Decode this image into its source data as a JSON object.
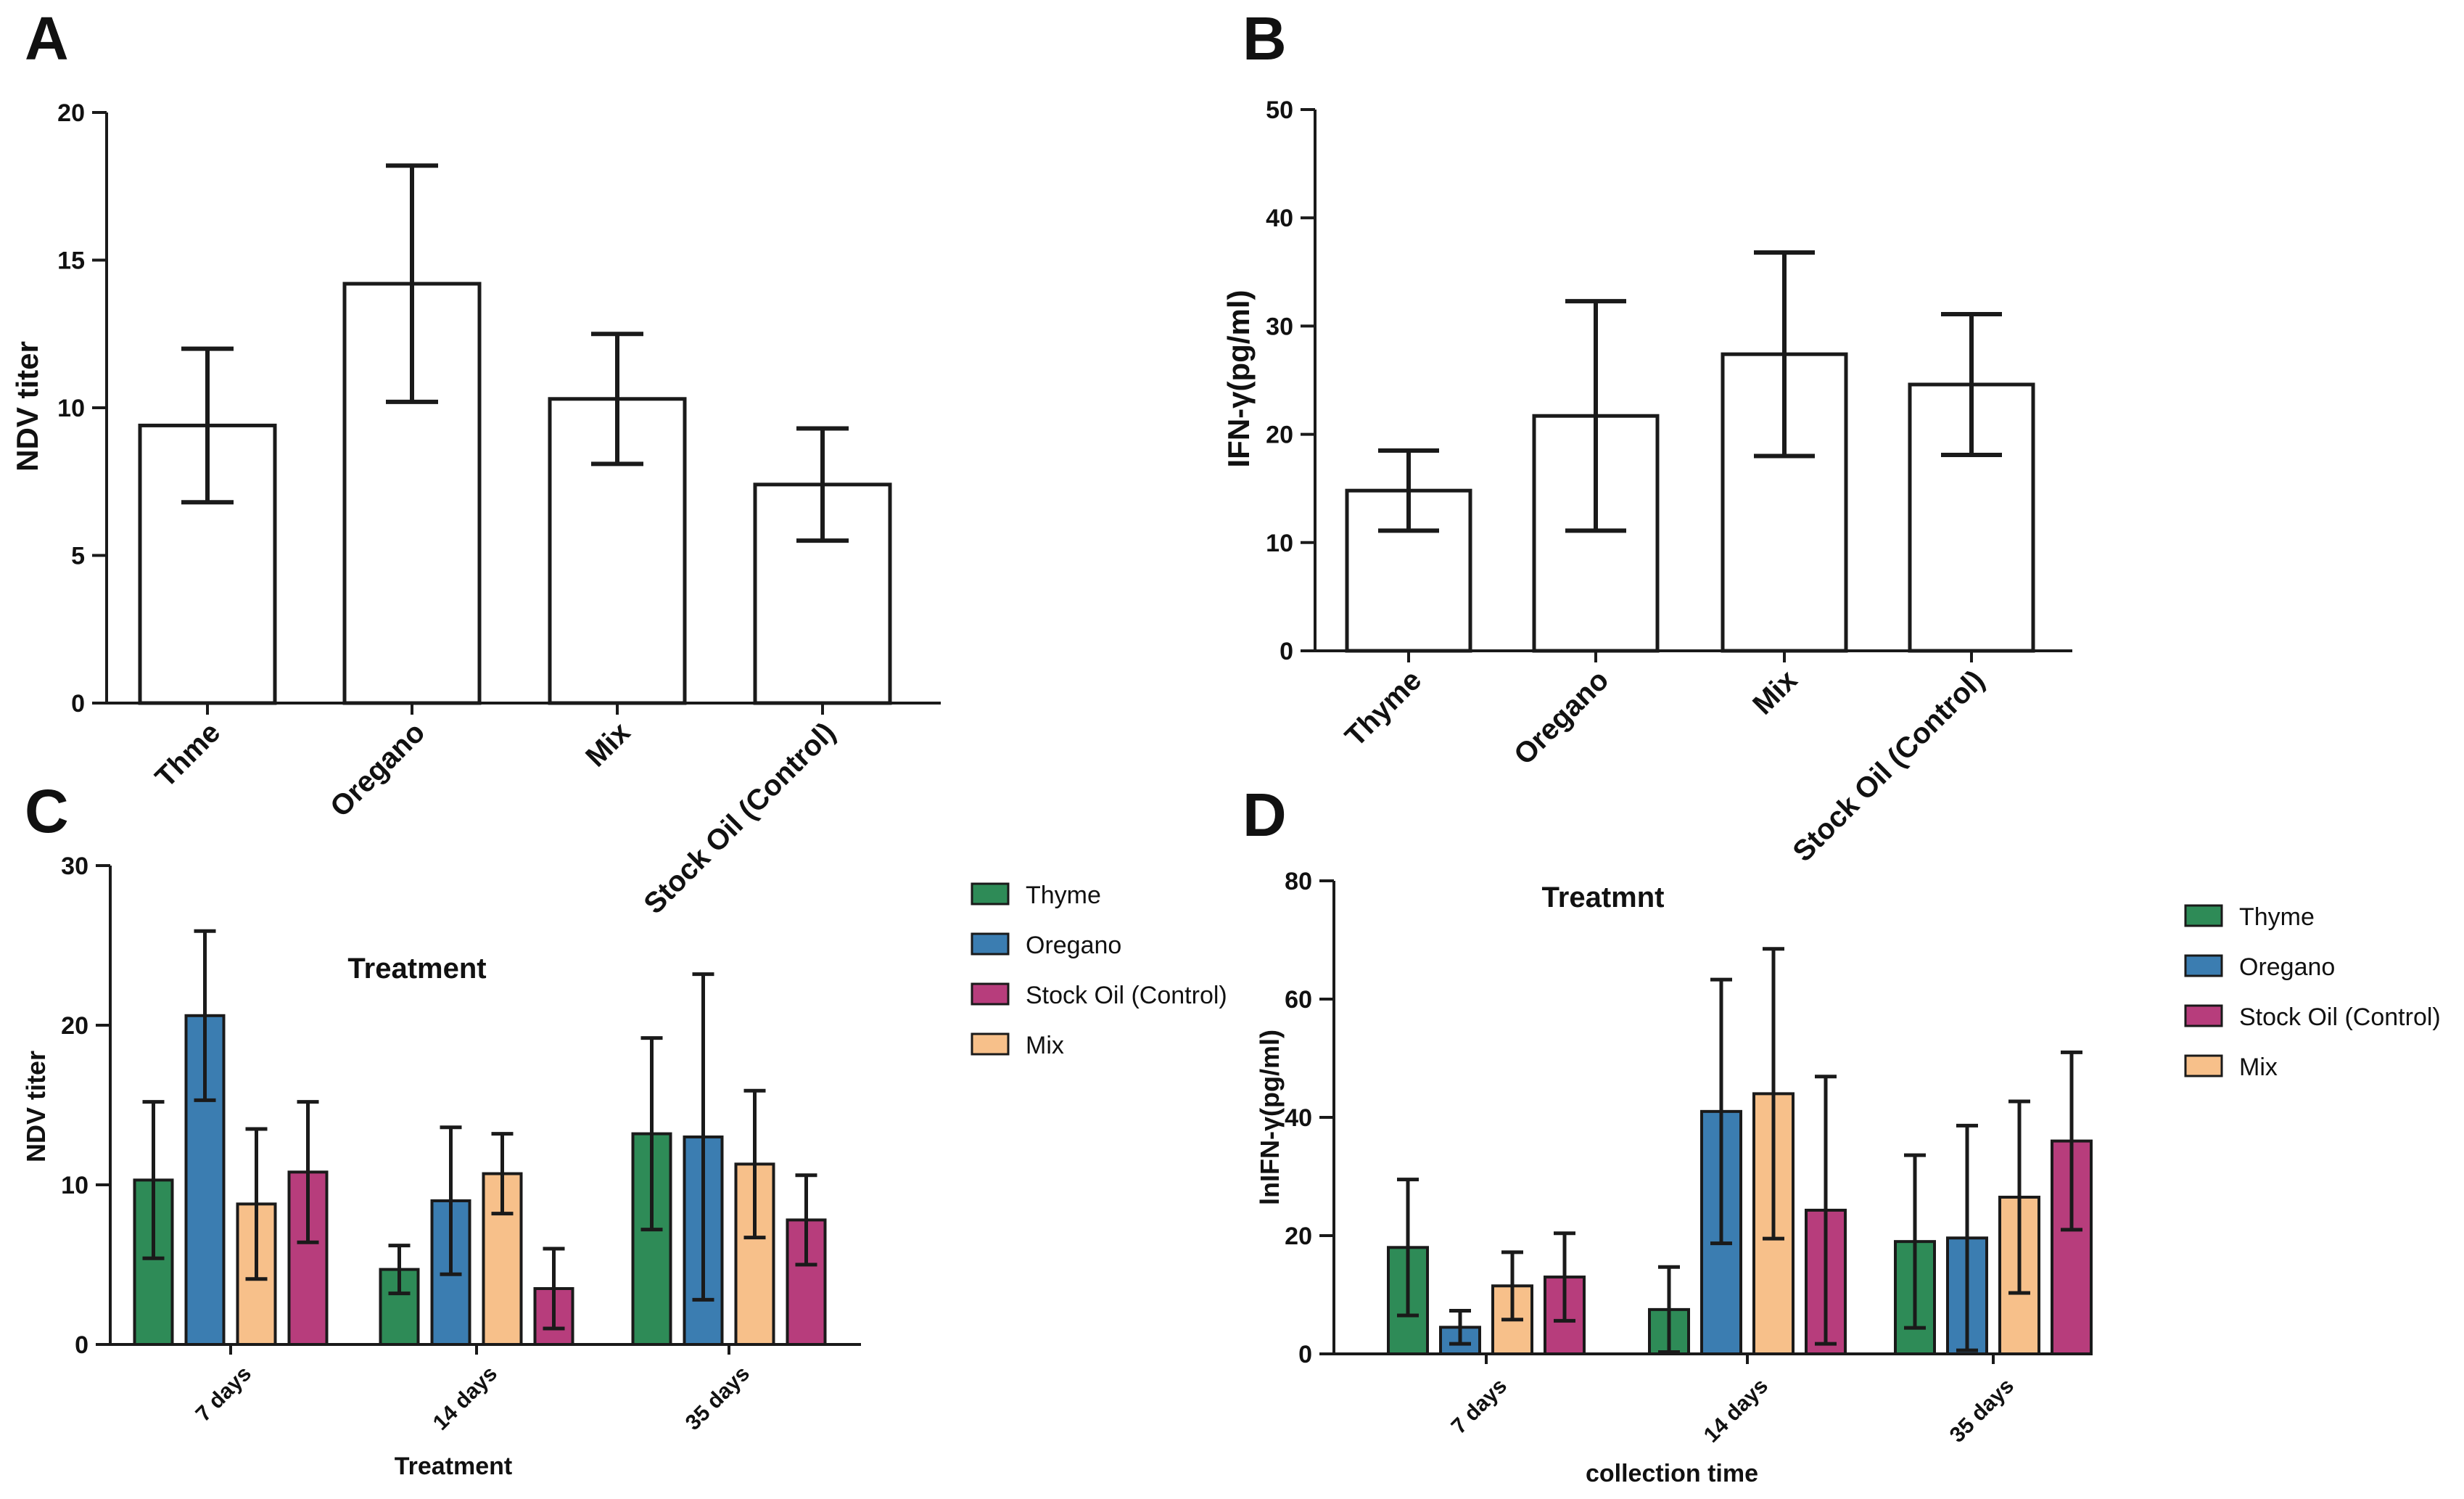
{
  "chart_data": [
    {
      "panel": "A",
      "type": "bar",
      "title": "",
      "xlabel": "",
      "ylabel": "NDV titer",
      "ylim": [
        0,
        20
      ],
      "yticks": [
        0,
        5,
        10,
        15,
        20
      ],
      "categories": [
        "Thme",
        "Oregano",
        "Mix",
        "Stock Oil (Control)"
      ],
      "values": [
        9.4,
        14.2,
        10.3,
        7.4
      ],
      "errors": [
        2.6,
        4.0,
        2.2,
        1.9
      ],
      "fill": "#ffffff"
    },
    {
      "panel": "B",
      "type": "bar",
      "title": "",
      "xlabel": "",
      "ylabel": "IFN-γ(pg/ml)",
      "ylim": [
        0,
        50
      ],
      "yticks": [
        0,
        10,
        20,
        30,
        40,
        50
      ],
      "categories": [
        "Thyme",
        "Oregano",
        "Mix",
        "Stock Oil (Control)"
      ],
      "values": [
        14.8,
        21.7,
        27.4,
        24.6
      ],
      "errors": [
        3.7,
        10.6,
        9.4,
        6.5
      ],
      "fill": "#ffffff"
    },
    {
      "panel": "C",
      "type": "bar",
      "title": "Treatment",
      "xlabel": "Treatment",
      "ylabel": "NDV titer",
      "ylim": [
        0,
        30
      ],
      "yticks": [
        0,
        10,
        20,
        30
      ],
      "categories": [
        "7 days",
        "14 days",
        "35 days"
      ],
      "series": [
        {
          "name": "Thyme",
          "color": "#2e8b57",
          "values": [
            10.3,
            4.7,
            13.2
          ],
          "errors": [
            4.9,
            1.5,
            6.0
          ]
        },
        {
          "name": "Oregano",
          "color": "#3b7db1",
          "values": [
            20.6,
            9.0,
            13.0
          ],
          "errors": [
            5.3,
            4.6,
            10.2
          ]
        },
        {
          "name": "Mix",
          "color": "#f7c08a",
          "values": [
            8.8,
            10.7,
            11.3
          ],
          "errors": [
            4.7,
            2.5,
            4.6
          ]
        },
        {
          "name": "Stock Oil (Control)",
          "color": "#b73d7c",
          "values": [
            10.8,
            3.5,
            7.8
          ],
          "errors": [
            4.4,
            2.5,
            2.8
          ]
        }
      ],
      "legend": [
        "Thyme",
        "Oregano",
        "Stock Oil (Control)",
        "Mix"
      ],
      "legend_position": "right"
    },
    {
      "panel": "D",
      "type": "bar",
      "title": "Treatmnt",
      "xlabel": "collection time",
      "ylabel": "lnIFN-γ(pg/ml)",
      "ylim": [
        0,
        80
      ],
      "yticks": [
        0,
        20,
        40,
        60,
        80
      ],
      "categories": [
        "7 days",
        "14 days",
        "35 days"
      ],
      "series": [
        {
          "name": "Thyme",
          "color": "#2e8b57",
          "values": [
            18.0,
            7.5,
            19.0
          ],
          "errors": [
            11.5,
            7.2,
            14.6
          ]
        },
        {
          "name": "Oregano",
          "color": "#3b7db1",
          "values": [
            4.5,
            41.0,
            19.6
          ],
          "errors": [
            2.8,
            22.3,
            19.0
          ]
        },
        {
          "name": "Mix",
          "color": "#f7c08a",
          "values": [
            11.5,
            44.0,
            26.5
          ],
          "errors": [
            5.7,
            24.5,
            16.2
          ]
        },
        {
          "name": "Stock Oil (Control)",
          "color": "#b73d7c",
          "values": [
            13.0,
            24.3,
            36.0
          ],
          "errors": [
            7.4,
            22.6,
            15.0
          ]
        }
      ],
      "legend": [
        "Thyme",
        "Oregano",
        "Stock Oil (Control)",
        "Mix"
      ],
      "legend_position": "right"
    }
  ]
}
